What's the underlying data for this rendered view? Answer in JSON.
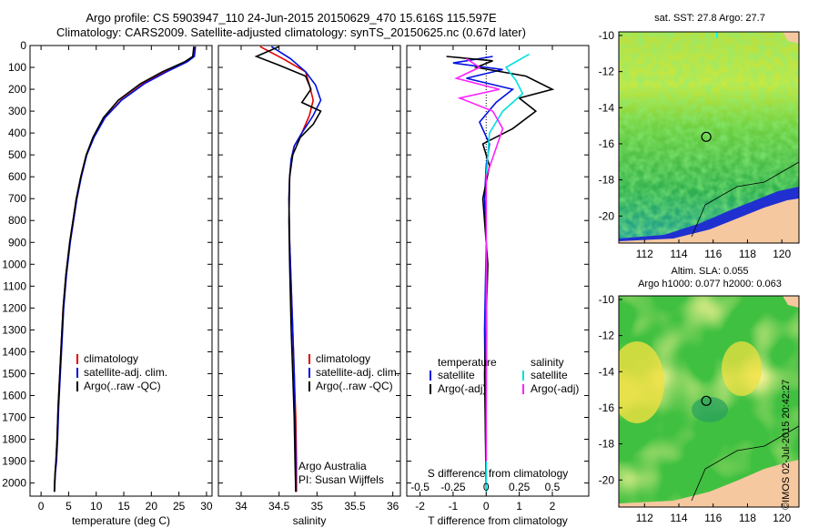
{
  "title_line1": "Argo profile: CS 5903947_110 24-Jun-2015 20150629_470 15.616S 115.597E",
  "title_line2": "Climatology: CARS2009. Satellite-adjusted climatology: synTS_20150625.nc (0.67d later)",
  "watermark": "©IMOS 02-Jul-2015 20:42:27",
  "attribution": {
    "line1": "Argo Australia",
    "line2": "PI: Susan Wijffels"
  },
  "colors": {
    "climatology": "#e00000",
    "satellite": "#0010e0",
    "argo": "#000000",
    "salinity_satellite": "#00e0e0",
    "salinity_argo": "#ff20ff",
    "land": "#f5c8a0",
    "ocean_warm": "#e8e848",
    "ocean_mid": "#40c040",
    "ocean_cool": "#20a0c0"
  },
  "chart_data": [
    {
      "type": "line",
      "id": "temperature",
      "xlabel": "temperature (deg C)",
      "xlim": [
        -2,
        31
      ],
      "ylim": [
        2060,
        0
      ],
      "xticks": [
        0,
        5,
        10,
        15,
        20,
        25,
        30
      ],
      "yticks": [
        0,
        100,
        200,
        300,
        400,
        500,
        600,
        700,
        800,
        900,
        1000,
        1100,
        1200,
        1300,
        1400,
        1500,
        1600,
        1700,
        1800,
        1900,
        2000
      ],
      "legend": [
        "climatology",
        "satellite-adj. clim.",
        "Argo(..raw -QC)"
      ],
      "legend_position": "lower-center",
      "series": [
        {
          "name": "climatology",
          "color": "#e00000",
          "x": [
            27.8,
            27.6,
            26.2,
            22.5,
            18.5,
            14.5,
            11.5,
            9.5,
            8.2,
            7.2,
            6.4,
            5.2,
            4.5,
            4.0,
            3.7,
            3.4,
            3.1,
            2.9,
            2.7,
            2.55,
            2.45,
            2.4
          ],
          "y": [
            5,
            50,
            75,
            120,
            175,
            250,
            330,
            420,
            500,
            600,
            700,
            900,
            1050,
            1200,
            1350,
            1500,
            1650,
            1800,
            1900,
            1950,
            2000,
            2040
          ]
        },
        {
          "name": "satellite-adj. clim.",
          "color": "#0010e0",
          "x": [
            28.0,
            27.8,
            26.5,
            22.8,
            18.7,
            14.6,
            11.6,
            9.6,
            8.3,
            7.3,
            6.5,
            5.3,
            4.6,
            4.1,
            3.8,
            3.5,
            3.2,
            3.0,
            2.8,
            2.6,
            2.5,
            2.45
          ],
          "y": [
            5,
            50,
            75,
            120,
            175,
            250,
            330,
            420,
            500,
            600,
            700,
            900,
            1050,
            1200,
            1350,
            1500,
            1650,
            1800,
            1900,
            1950,
            2000,
            2040
          ]
        },
        {
          "name": "Argo(..raw -QC)",
          "color": "#000000",
          "x": [
            27.7,
            27.5,
            26.0,
            22.0,
            18.0,
            14.0,
            11.3,
            9.4,
            8.2,
            7.2,
            6.4,
            5.2,
            4.5,
            4.0,
            3.7,
            3.4,
            3.1,
            2.9,
            2.7,
            2.55,
            2.45,
            2.4
          ],
          "y": [
            5,
            50,
            75,
            120,
            175,
            250,
            330,
            420,
            500,
            600,
            700,
            900,
            1050,
            1200,
            1350,
            1500,
            1650,
            1800,
            1900,
            1950,
            2000,
            2040
          ]
        }
      ]
    },
    {
      "type": "line",
      "id": "salinity",
      "xlabel": "salinity",
      "xlim": [
        33.7,
        36.1
      ],
      "ylim": [
        2060,
        0
      ],
      "xticks": [
        34,
        34.5,
        35,
        35.5,
        36
      ],
      "legend": [
        "climatology",
        "satellite-adj. clim.",
        "Argo(..raw -QC)"
      ],
      "legend_position": "lower-right",
      "series": [
        {
          "name": "climatology",
          "color": "#e00000",
          "x": [
            34.25,
            34.55,
            34.85,
            34.9,
            34.95,
            34.9,
            34.8,
            34.7,
            34.66,
            34.64,
            34.63,
            34.64,
            34.66,
            34.68,
            34.7,
            34.72,
            34.73,
            34.73
          ],
          "y": [
            5,
            60,
            120,
            180,
            250,
            320,
            400,
            460,
            520,
            600,
            700,
            900,
            1100,
            1300,
            1500,
            1700,
            1900,
            2040
          ]
        },
        {
          "name": "satellite-adj. clim.",
          "color": "#0010e0",
          "x": [
            34.4,
            34.65,
            34.85,
            34.98,
            35.05,
            34.95,
            34.8,
            34.7,
            34.66,
            34.64,
            34.63,
            34.64,
            34.66,
            34.68,
            34.7,
            34.71,
            34.72,
            34.72
          ],
          "y": [
            5,
            60,
            120,
            180,
            250,
            320,
            400,
            460,
            520,
            600,
            700,
            900,
            1100,
            1300,
            1500,
            1700,
            1900,
            2040
          ]
        },
        {
          "name": "Argo(..raw -QC)",
          "color": "#000000",
          "x": [
            34.5,
            34.2,
            34.5,
            34.85,
            34.92,
            34.8,
            35.05,
            34.95,
            34.78,
            34.68,
            34.64,
            34.63,
            34.64,
            34.66,
            34.68,
            34.7,
            34.71,
            34.72
          ],
          "y": [
            5,
            50,
            90,
            140,
            200,
            260,
            300,
            360,
            420,
            500,
            600,
            800,
            1000,
            1300,
            1500,
            1700,
            1900,
            2040
          ]
        }
      ]
    },
    {
      "type": "line",
      "id": "difference",
      "xlabel": "T difference from climatology",
      "xlabel2": "S difference from climatology",
      "xlim": [
        -2.4,
        3.1
      ],
      "ylim": [
        2060,
        0
      ],
      "xticks": [
        -2,
        -1,
        0,
        1,
        2
      ],
      "xticks2_labels": [
        "-0.5",
        "-0.25",
        "0",
        "0.25",
        "0.5"
      ],
      "legend_groups": [
        "temperature",
        "salinity"
      ],
      "legend": [
        "satellite",
        "Argo(-adj)",
        "satellite",
        "Argo(-adj)"
      ],
      "legend_position": "lower-center",
      "series": [
        {
          "name": "T satellite",
          "color": "#0010e0",
          "x": [
            0.2,
            -1.0,
            0.5,
            -0.6,
            0.8,
            0.3,
            -0.2,
            0.1,
            0.0,
            -0.05,
            0.0,
            -0.05,
            -0.02,
            0.0
          ],
          "y": [
            50,
            80,
            110,
            150,
            200,
            260,
            350,
            450,
            550,
            700,
            900,
            1300,
            1700,
            2040
          ]
        },
        {
          "name": "T Argo(-adj)",
          "color": "#000000",
          "x": [
            -1.2,
            0.2,
            -0.3,
            1.2,
            2.0,
            1.0,
            1.5,
            0.8,
            -0.1,
            0.1,
            -0.1,
            0.05,
            -0.05,
            0.0
          ],
          "y": [
            50,
            70,
            100,
            140,
            200,
            240,
            300,
            380,
            450,
            550,
            700,
            1000,
            1500,
            2040
          ]
        },
        {
          "name": "S satellite",
          "color": "#00e0e0",
          "x": [
            1.3,
            0.6,
            0.9,
            1.1,
            0.5,
            0.1,
            0.0,
            0.0,
            0.02,
            0.0,
            0.0
          ],
          "y": [
            40,
            100,
            160,
            220,
            300,
            400,
            600,
            900,
            1300,
            1700,
            2040
          ]
        },
        {
          "name": "S Argo(-adj)",
          "color": "#ff20ff",
          "x": [
            -0.6,
            -0.2,
            -0.9,
            0.4,
            -0.8,
            0.2,
            0.5,
            0.0,
            0.0,
            0.0
          ],
          "y": [
            60,
            100,
            150,
            200,
            240,
            300,
            380,
            600,
            1200,
            1900
          ]
        }
      ]
    },
    {
      "type": "heatmap",
      "id": "sst_map",
      "title": "sat. SST: 27.8 Argo: 27.7",
      "xlim": [
        110.5,
        121
      ],
      "ylim": [
        -21.5,
        -9.8
      ],
      "xticks": [
        112,
        114,
        116,
        118,
        120
      ],
      "yticks": [
        -10,
        -12,
        -14,
        -16,
        -18,
        -20
      ],
      "marker": {
        "lon": 115.597,
        "lat": -15.616
      }
    },
    {
      "type": "heatmap",
      "id": "sla_map",
      "title": "Altim. SLA: 0.055",
      "subtitle": "Argo h1000: 0.077 h2000: 0.063",
      "xlim": [
        110.5,
        121
      ],
      "ylim": [
        -21.5,
        -9.8
      ],
      "xticks": [
        112,
        114,
        116,
        118,
        120
      ],
      "yticks": [
        -10,
        -12,
        -14,
        -16,
        -18,
        -20
      ],
      "marker": {
        "lon": 115.597,
        "lat": -15.616
      }
    }
  ]
}
